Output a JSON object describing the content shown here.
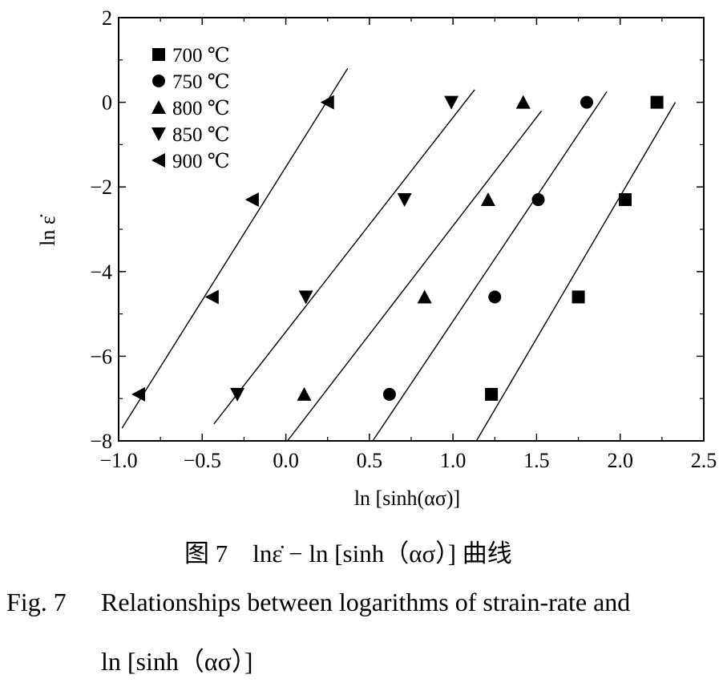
{
  "chart_data": {
    "type": "scatter",
    "xlabel": "ln [sinh(ασ)]",
    "ylabel": "ln ε̇",
    "xlim": [
      -1.0,
      2.5
    ],
    "ylim": [
      -8,
      2
    ],
    "x_ticks": [
      "−1.0",
      "−0.5",
      "0.0",
      "0.5",
      "1.0",
      "1.5",
      "2.0",
      "2.5"
    ],
    "y_ticks": [
      "2",
      "0",
      "−2",
      "−4",
      "−6",
      "−8"
    ],
    "legend_position": "top-left",
    "series": [
      {
        "name": "700 ℃",
        "marker": "square",
        "x": [
          1.23,
          1.75,
          2.03,
          2.22
        ],
        "y": [
          -6.9,
          -4.6,
          -2.3,
          0.0
        ],
        "fit": [
          [
            1.14,
            -8.0
          ],
          [
            2.33,
            0.0
          ]
        ]
      },
      {
        "name": "750 ℃",
        "marker": "circle",
        "x": [
          0.62,
          1.25,
          1.51,
          1.8
        ],
        "y": [
          -6.9,
          -4.6,
          -2.3,
          0.0
        ],
        "fit": [
          [
            0.52,
            -8.0
          ],
          [
            1.92,
            0.25
          ]
        ]
      },
      {
        "name": "800 ℃",
        "marker": "triangle-up",
        "x": [
          0.11,
          0.83,
          1.21,
          1.42
        ],
        "y": [
          -6.9,
          -4.6,
          -2.3,
          0.0
        ],
        "fit": [
          [
            0.01,
            -8.0
          ],
          [
            1.53,
            -0.2
          ]
        ]
      },
      {
        "name": "850 ℃",
        "marker": "triangle-down",
        "x": [
          -0.29,
          0.12,
          0.71,
          0.99
        ],
        "y": [
          -6.9,
          -4.6,
          -2.3,
          0.0
        ],
        "fit": [
          [
            -0.43,
            -7.6
          ],
          [
            1.13,
            0.3
          ]
        ]
      },
      {
        "name": "900 ℃",
        "marker": "triangle-left",
        "x": [
          -0.88,
          -0.44,
          -0.2,
          0.25
        ],
        "y": [
          -6.9,
          -4.6,
          -2.3,
          0.0
        ],
        "fit": [
          [
            -0.98,
            -7.7
          ],
          [
            0.37,
            0.8
          ]
        ]
      }
    ]
  },
  "caption": {
    "cn": "图 7　lnε̇ − ln [sinh（ασ）] 曲线",
    "en_num": "Fig. 7",
    "en_line1": "Relationships between logarithms of strain-rate and",
    "en_line2": "ln [sinh（ασ）]"
  }
}
